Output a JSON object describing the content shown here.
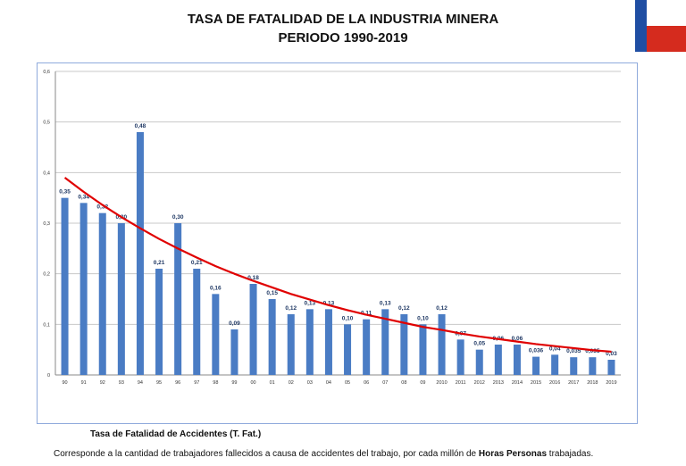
{
  "title": {
    "line1": "TASA DE FATALIDAD DE LA INDUSTRIA MINERA",
    "line2": "PERIODO 1990-2019"
  },
  "caption": "Tasa de Fatalidad de Accidentes (T. Fat.)",
  "footnote": {
    "before": "Corresponde a la  cantidad de trabajadores fallecidos a causa de accidentes del trabajo, por cada millón de ",
    "bold": "Horas Personas",
    "after": " trabajadas."
  },
  "colors": {
    "bar": "#4a7cc4",
    "trend": "#e00000",
    "grid": "#c8c8c8",
    "frame": "#8faadc",
    "flag_blue": "#1f4ea3",
    "flag_red": "#d52b1e"
  },
  "chart_data": {
    "type": "bar",
    "categories": [
      "90",
      "91",
      "92",
      "93",
      "94",
      "95",
      "96",
      "97",
      "98",
      "99",
      "00",
      "01",
      "02",
      "03",
      "04",
      "05",
      "06",
      "07",
      "08",
      "09",
      "2010",
      "2011",
      "2012",
      "2013",
      "2014",
      "2015",
      "2016",
      "2017",
      "2018",
      "2019"
    ],
    "values": [
      0.35,
      0.34,
      0.32,
      0.3,
      0.48,
      0.21,
      0.3,
      0.21,
      0.16,
      0.09,
      0.18,
      0.15,
      0.12,
      0.13,
      0.13,
      0.1,
      0.11,
      0.13,
      0.12,
      0.1,
      0.12,
      0.07,
      0.05,
      0.06,
      0.06,
      0.036,
      0.04,
      0.035,
      0.035,
      0.03
    ],
    "labels": [
      "0,35",
      "0,34",
      "0,32",
      "0,30",
      "0,48",
      "0,21",
      "0,30",
      "0,21",
      "0,16",
      "0,09",
      "0,18",
      "0,15",
      "0,12",
      "0,13",
      "0,13",
      "0,10",
      "0,11",
      "0,13",
      "0,12",
      "0,10",
      "0,12",
      "0,07",
      "0,05",
      "0,06",
      "0,06",
      "0,036",
      "0,04",
      "0,035",
      "0,035",
      "0,03"
    ],
    "ylim": [
      0,
      0.6
    ],
    "yticks": [
      0,
      0.1,
      0.2,
      0.3,
      0.4,
      0.5,
      0.6
    ],
    "ytick_labels": [
      "0",
      "0,1",
      "0,2",
      "0,3",
      "0,4",
      "0,5",
      "0,6"
    ],
    "grid": true,
    "trendline": {
      "type": "exponential",
      "values": [
        0.39,
        0.362,
        0.336,
        0.312,
        0.29,
        0.269,
        0.25,
        0.232,
        0.215,
        0.2,
        0.186,
        0.173,
        0.16,
        0.149,
        0.138,
        0.128,
        0.119,
        0.111,
        0.103,
        0.095,
        0.089,
        0.082,
        0.076,
        0.071,
        0.066,
        0.061,
        0.057,
        0.053,
        0.049,
        0.046
      ]
    }
  }
}
